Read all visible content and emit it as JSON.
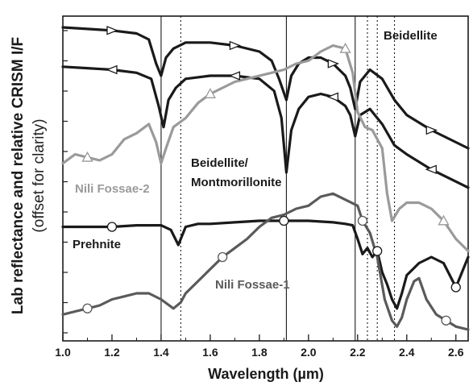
{
  "chart_data": {
    "type": "line",
    "title": "",
    "xlabel": "Wavelength (µm)",
    "ylabel": "Lab reflectance and relative CRISM I/F",
    "ylabel_note": "(offset for clarity)",
    "xlim": [
      1.0,
      2.65
    ],
    "ylim": [
      0,
      100
    ],
    "y_tick_labels_shown": false,
    "xticks": [
      "1.0",
      "1.2",
      "1.4",
      "1.6",
      "1.8",
      "2.0",
      "2.2",
      "2.4",
      "2.6"
    ],
    "xtick_values": [
      1.0,
      1.2,
      1.4,
      1.6,
      1.8,
      2.0,
      2.2,
      2.4,
      2.6
    ],
    "grid": false,
    "vertical_reference_lines": {
      "solid": [
        1.4,
        1.91,
        2.19
      ],
      "dotted": [
        1.48,
        2.24,
        2.28,
        2.35
      ]
    },
    "series": [
      {
        "name": "Beidellite",
        "color": "#1a1a1a",
        "marker": "right-triangle",
        "x": [
          1.0,
          1.1,
          1.2,
          1.3,
          1.35,
          1.38,
          1.4,
          1.42,
          1.45,
          1.5,
          1.6,
          1.7,
          1.8,
          1.85,
          1.88,
          1.91,
          1.93,
          1.96,
          2.0,
          2.05,
          2.1,
          2.15,
          2.17,
          2.19,
          2.21,
          2.25,
          2.3,
          2.35,
          2.4,
          2.5,
          2.6,
          2.65
        ],
        "values": [
          100,
          99.5,
          99,
          98,
          96,
          88,
          84,
          90,
          93,
          95,
          95,
          94,
          92,
          89,
          83,
          76,
          84,
          88,
          90,
          90,
          88,
          84,
          80,
          73,
          82,
          86,
          83,
          76,
          71,
          66,
          62,
          60
        ]
      },
      {
        "name": "Beidellite/ Montmorillonite",
        "color": "#1a1a1a",
        "marker": "left-triangle",
        "x": [
          1.0,
          1.1,
          1.2,
          1.3,
          1.36,
          1.39,
          1.41,
          1.43,
          1.46,
          1.5,
          1.6,
          1.7,
          1.8,
          1.86,
          1.89,
          1.91,
          1.93,
          1.96,
          2.0,
          2.05,
          2.1,
          2.15,
          2.17,
          2.19,
          2.21,
          2.25,
          2.3,
          2.35,
          2.4,
          2.5,
          2.6,
          2.65
        ],
        "values": [
          87,
          86.5,
          86,
          85,
          83,
          74,
          67,
          76,
          80,
          83,
          84,
          84,
          83,
          79,
          70,
          52,
          66,
          73,
          77,
          78,
          77,
          74,
          71,
          64,
          71,
          73,
          68,
          61,
          58,
          53,
          49,
          47
        ]
      },
      {
        "name": "Nili Fossae-2",
        "color": "#9a9a9a",
        "marker": "triangle",
        "x": [
          1.0,
          1.05,
          1.1,
          1.15,
          1.2,
          1.25,
          1.3,
          1.35,
          1.38,
          1.4,
          1.42,
          1.45,
          1.5,
          1.55,
          1.6,
          1.65,
          1.7,
          1.75,
          1.8,
          1.85,
          1.9,
          1.95,
          2.0,
          2.05,
          2.1,
          2.15,
          2.18,
          2.2,
          2.23,
          2.26,
          2.3,
          2.32,
          2.34,
          2.37,
          2.4,
          2.45,
          2.5,
          2.55,
          2.6,
          2.65
        ],
        "values": [
          55,
          58,
          57,
          56,
          58,
          63,
          65,
          68,
          62,
          55,
          60,
          67,
          70,
          75,
          78,
          80,
          82,
          83,
          84,
          85,
          86,
          88,
          89,
          92,
          94,
          93,
          85,
          72,
          67,
          66,
          60,
          45,
          36,
          40,
          42,
          42,
          40,
          36,
          30,
          26
        ]
      },
      {
        "name": "Prehnite",
        "color": "#1a1a1a",
        "marker": "circle",
        "x": [
          1.0,
          1.1,
          1.2,
          1.3,
          1.4,
          1.44,
          1.47,
          1.5,
          1.55,
          1.6,
          1.7,
          1.8,
          1.9,
          2.0,
          2.1,
          2.15,
          2.18,
          2.2,
          2.22,
          2.24,
          2.26,
          2.28,
          2.3,
          2.32,
          2.34,
          2.36,
          2.38,
          2.4,
          2.45,
          2.5,
          2.55,
          2.6,
          2.63,
          2.65
        ],
        "values": [
          34,
          34,
          34,
          34.5,
          34.5,
          33,
          28,
          34,
          35,
          35,
          35.5,
          36,
          36,
          36,
          35.5,
          35,
          34.5,
          30,
          25,
          27,
          24,
          26,
          19,
          15,
          10,
          7,
          12,
          18,
          22,
          24,
          22,
          14,
          20,
          24
        ]
      },
      {
        "name": "Nili Fossae-1",
        "color": "#5a5a5a",
        "marker": "circle",
        "x": [
          1.0,
          1.05,
          1.1,
          1.15,
          1.2,
          1.25,
          1.3,
          1.35,
          1.4,
          1.45,
          1.48,
          1.5,
          1.55,
          1.6,
          1.65,
          1.7,
          1.75,
          1.8,
          1.85,
          1.9,
          1.95,
          2.0,
          2.05,
          2.1,
          2.15,
          2.2,
          2.22,
          2.25,
          2.28,
          2.31,
          2.34,
          2.36,
          2.38,
          2.4,
          2.43,
          2.45,
          2.48,
          2.52,
          2.56,
          2.6,
          2.65
        ],
        "values": [
          5,
          6,
          7,
          8,
          10,
          11,
          12,
          12,
          10,
          7,
          9,
          12,
          16,
          20,
          24,
          27,
          30,
          34,
          37,
          38,
          40,
          41,
          44,
          45,
          43,
          41,
          36,
          32,
          24,
          10,
          3,
          1,
          4,
          10,
          16,
          17,
          10,
          5,
          3,
          1,
          0
        ]
      }
    ],
    "annotations": [
      {
        "text": "Beidellite",
        "series": "Beidellite"
      },
      {
        "text": "Beidellite/",
        "series": "Beidellite/ Montmorillonite"
      },
      {
        "text": "Montmorillonite",
        "series": "Beidellite/ Montmorillonite"
      },
      {
        "text": "Nili Fossae-2",
        "series": "Nili Fossae-2"
      },
      {
        "text": "Prehnite",
        "series": "Prehnite"
      },
      {
        "text": "Nili Fossae-1",
        "series": "Nili Fossae-1"
      }
    ]
  }
}
